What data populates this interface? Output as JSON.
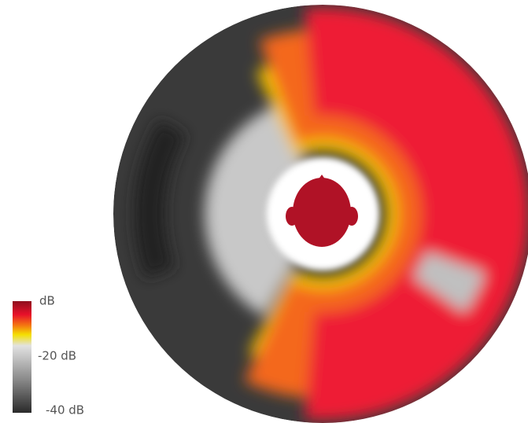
{
  "colorbar": {
    "labels": [
      "dB",
      "-20 dB",
      "-40 dB"
    ]
  }
}
